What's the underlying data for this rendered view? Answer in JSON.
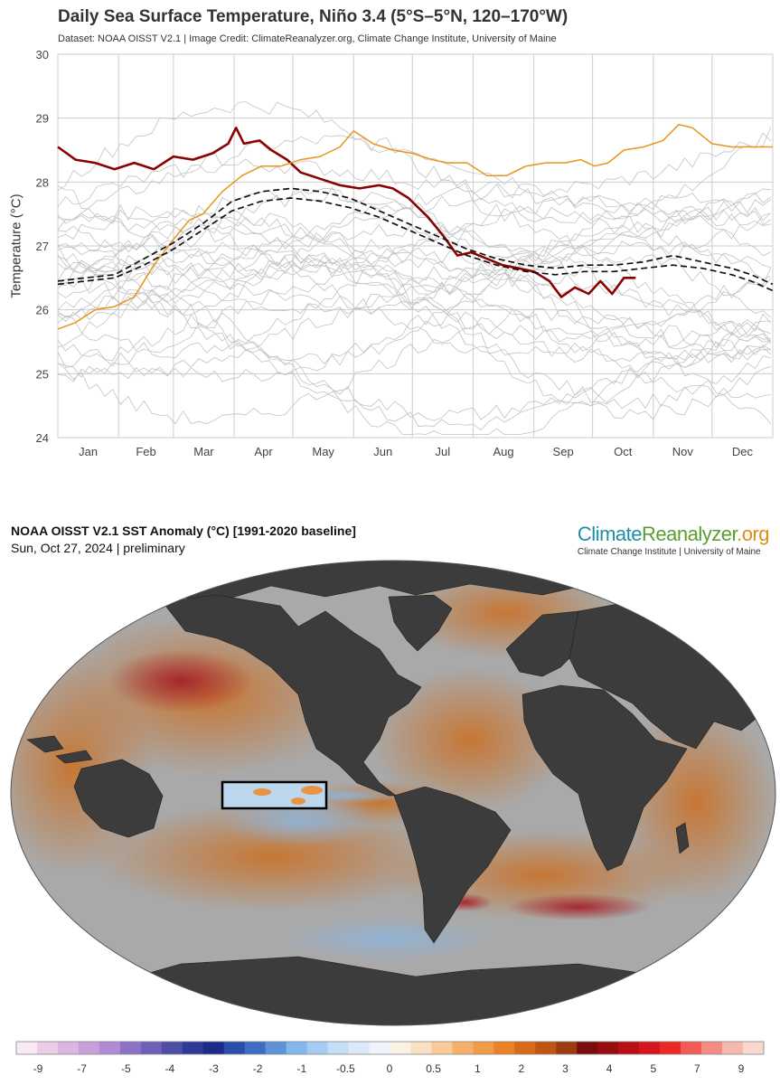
{
  "line_chart": {
    "title": "Daily Sea Surface Temperature, Niño 3.4 (5°S–5°N, 120–170°W)",
    "subtitle": "Dataset: NOAA OISST V2.1 | Image Credit: ClimateReanalyzer.org, Climate Change Institute, University of Maine",
    "ylabel": "Temperature (°C)"
  },
  "chart_data": {
    "type": "line",
    "y_ticks": [
      "24",
      "25",
      "26",
      "27",
      "28",
      "29",
      "30"
    ],
    "x_ticks": [
      "Jan",
      "Feb",
      "Mar",
      "Apr",
      "May",
      "Jun",
      "Jul",
      "Aug",
      "Sep",
      "Oct",
      "Nov",
      "Dec"
    ],
    "ylim": [
      24,
      30
    ],
    "xlim": [
      1,
      366
    ],
    "grid": true,
    "colors": {
      "highlight": "#8b0000",
      "previous_year": "#e8951a",
      "climatology": "#111111",
      "background": "#c2c2c2"
    },
    "series": [
      {
        "style": "highlight",
        "values": [
          [
            1,
            28.55
          ],
          [
            10,
            28.35
          ],
          [
            20,
            28.3
          ],
          [
            30,
            28.2
          ],
          [
            40,
            28.3
          ],
          [
            50,
            28.2
          ],
          [
            60,
            28.4
          ],
          [
            70,
            28.35
          ],
          [
            80,
            28.45
          ],
          [
            88,
            28.6
          ],
          [
            92,
            28.85
          ],
          [
            96,
            28.6
          ],
          [
            104,
            28.65
          ],
          [
            110,
            28.5
          ],
          [
            118,
            28.35
          ],
          [
            125,
            28.15
          ],
          [
            135,
            28.05
          ],
          [
            145,
            27.95
          ],
          [
            155,
            27.9
          ],
          [
            165,
            27.95
          ],
          [
            172,
            27.9
          ],
          [
            180,
            27.75
          ],
          [
            190,
            27.45
          ],
          [
            198,
            27.15
          ],
          [
            205,
            26.85
          ],
          [
            212,
            26.9
          ],
          [
            220,
            26.8
          ],
          [
            228,
            26.7
          ],
          [
            236,
            26.65
          ],
          [
            244,
            26.6
          ],
          [
            252,
            26.45
          ],
          [
            258,
            26.2
          ],
          [
            265,
            26.35
          ],
          [
            272,
            26.25
          ],
          [
            278,
            26.45
          ],
          [
            284,
            26.25
          ],
          [
            290,
            26.5
          ],
          [
            296,
            26.5
          ]
        ]
      },
      {
        "style": "previous_year",
        "values": [
          [
            1,
            25.7
          ],
          [
            10,
            25.8
          ],
          [
            20,
            26.0
          ],
          [
            30,
            26.05
          ],
          [
            40,
            26.2
          ],
          [
            50,
            26.7
          ],
          [
            60,
            27.1
          ],
          [
            68,
            27.4
          ],
          [
            75,
            27.5
          ],
          [
            85,
            27.85
          ],
          [
            95,
            28.1
          ],
          [
            105,
            28.25
          ],
          [
            115,
            28.25
          ],
          [
            125,
            28.35
          ],
          [
            135,
            28.4
          ],
          [
            145,
            28.55
          ],
          [
            152,
            28.8
          ],
          [
            162,
            28.6
          ],
          [
            172,
            28.5
          ],
          [
            182,
            28.45
          ],
          [
            192,
            28.35
          ],
          [
            200,
            28.3
          ],
          [
            210,
            28.3
          ],
          [
            220,
            28.1
          ],
          [
            230,
            28.1
          ],
          [
            240,
            28.25
          ],
          [
            250,
            28.3
          ],
          [
            260,
            28.3
          ],
          [
            268,
            28.35
          ],
          [
            275,
            28.25
          ],
          [
            282,
            28.3
          ],
          [
            290,
            28.5
          ],
          [
            300,
            28.55
          ],
          [
            310,
            28.65
          ],
          [
            318,
            28.9
          ],
          [
            325,
            28.85
          ],
          [
            335,
            28.6
          ],
          [
            345,
            28.55
          ],
          [
            355,
            28.55
          ],
          [
            366,
            28.55
          ]
        ]
      },
      {
        "style": "climatology",
        "values": [
          [
            1,
            26.45
          ],
          [
            15,
            26.5
          ],
          [
            30,
            26.55
          ],
          [
            45,
            26.8
          ],
          [
            60,
            27.05
          ],
          [
            75,
            27.35
          ],
          [
            90,
            27.7
          ],
          [
            105,
            27.85
          ],
          [
            120,
            27.9
          ],
          [
            135,
            27.85
          ],
          [
            150,
            27.75
          ],
          [
            165,
            27.55
          ],
          [
            180,
            27.35
          ],
          [
            195,
            27.15
          ],
          [
            210,
            26.95
          ],
          [
            225,
            26.8
          ],
          [
            240,
            26.7
          ],
          [
            255,
            26.65
          ],
          [
            270,
            26.7
          ],
          [
            285,
            26.7
          ],
          [
            300,
            26.75
          ],
          [
            315,
            26.85
          ],
          [
            330,
            26.75
          ],
          [
            345,
            26.65
          ],
          [
            355,
            26.55
          ],
          [
            366,
            26.4
          ]
        ]
      },
      {
        "style": "climatology",
        "values": [
          [
            1,
            26.4
          ],
          [
            15,
            26.45
          ],
          [
            30,
            26.5
          ],
          [
            45,
            26.7
          ],
          [
            60,
            26.95
          ],
          [
            75,
            27.25
          ],
          [
            90,
            27.55
          ],
          [
            105,
            27.7
          ],
          [
            120,
            27.75
          ],
          [
            135,
            27.7
          ],
          [
            150,
            27.6
          ],
          [
            165,
            27.45
          ],
          [
            180,
            27.25
          ],
          [
            195,
            27.05
          ],
          [
            210,
            26.85
          ],
          [
            225,
            26.7
          ],
          [
            240,
            26.6
          ],
          [
            255,
            26.55
          ],
          [
            270,
            26.6
          ],
          [
            285,
            26.6
          ],
          [
            300,
            26.65
          ],
          [
            315,
            26.7
          ],
          [
            330,
            26.65
          ],
          [
            345,
            26.55
          ],
          [
            355,
            26.45
          ],
          [
            366,
            26.3
          ]
        ]
      }
    ]
  },
  "map_panel": {
    "title": "NOAA OISST V2.1 SST Anomaly (°C) [1991-2020 baseline]",
    "date": "Sun, Oct 27, 2024 | preliminary",
    "logo_text": [
      "Climate",
      "Reanalyzer",
      ".org"
    ],
    "logo_subtitle": "Climate Change Institute | University of Maine",
    "colors": {
      "land": "#3c3c3c",
      "ocean_neutral": "#a9a9a9",
      "warm": "#c8742e",
      "strong_warm": "#a4222a",
      "cool": "#8fb4d8",
      "nino_box": "#000000"
    },
    "colorbar": {
      "colors": [
        "#f8e9f2",
        "#ebcde8",
        "#dcb6e3",
        "#c79fdb",
        "#b08ad4",
        "#8d73c6",
        "#6f5fb6",
        "#4f4ca4",
        "#2e3a98",
        "#1c2b8a",
        "#2b4fa8",
        "#3d6cc2",
        "#5d93d8",
        "#83b6ea",
        "#a6cdf1",
        "#c4def6",
        "#dceaf7",
        "#eef4fb",
        "#fbf1e4",
        "#fbe1c3",
        "#f9cb98",
        "#f6b06c",
        "#f19a48",
        "#ea8225",
        "#d66a1a",
        "#bf5413",
        "#9a3c0e",
        "#7a0c0c",
        "#970d10",
        "#b80f14",
        "#d6151a",
        "#eb2a25",
        "#f25a55",
        "#f48c84",
        "#f6b7ac",
        "#f9d9cf"
      ],
      "labels": [
        "-9",
        "-7",
        "-5",
        "-4",
        "-3",
        "-2",
        "-1",
        "-0.5",
        "0",
        "0.5",
        "1",
        "2",
        "3",
        "4",
        "5",
        "7",
        "9"
      ]
    }
  }
}
